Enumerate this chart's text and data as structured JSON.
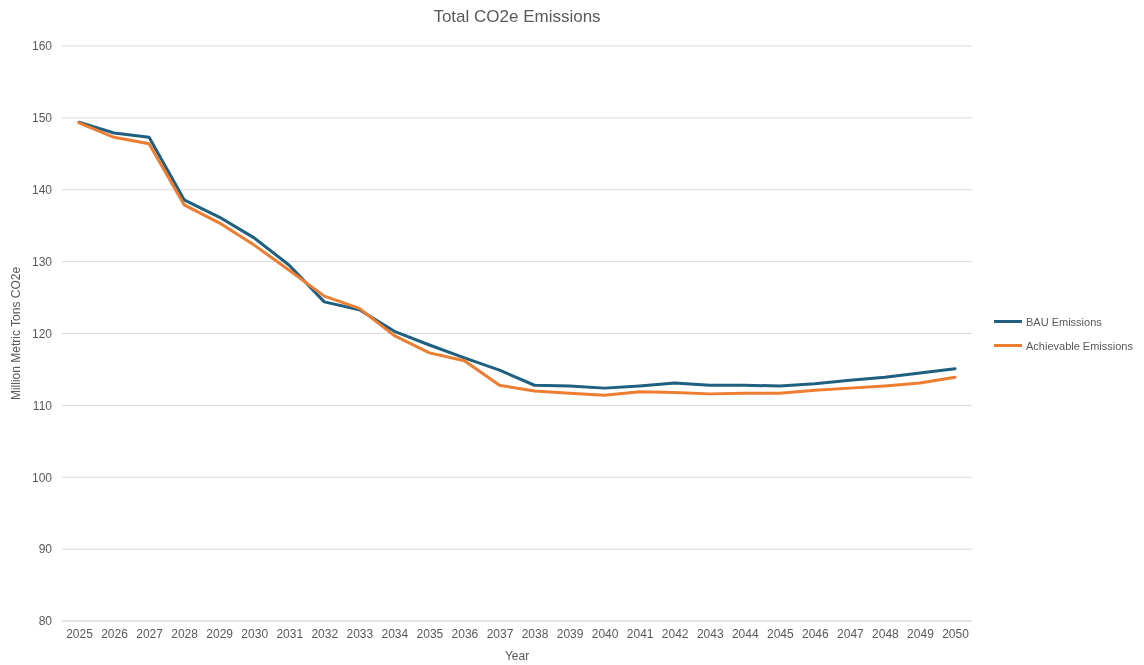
{
  "chart_data": {
    "type": "line",
    "title": "Total CO2e Emissions",
    "xlabel": "Year",
    "ylabel": "Million Metric Tons CO2e",
    "categories": [
      "2025",
      "2026",
      "2027",
      "2028",
      "2029",
      "2030",
      "2031",
      "2032",
      "2033",
      "2034",
      "2035",
      "2036",
      "2037",
      "2038",
      "2039",
      "2040",
      "2041",
      "2042",
      "2043",
      "2044",
      "2045",
      "2046",
      "2047",
      "2048",
      "2049",
      "2050"
    ],
    "series": [
      {
        "name": "BAU Emissions",
        "color": "#1f5f7f",
        "values": [
          149.4,
          147.9,
          147.3,
          138.6,
          136.2,
          133.3,
          129.5,
          124.4,
          123.3,
          120.3,
          118.4,
          116.6,
          114.9,
          112.8,
          112.7,
          112.4,
          112.7,
          113.1,
          112.8,
          112.8,
          112.7,
          113.0,
          113.5,
          113.9,
          114.5,
          115.1
        ]
      },
      {
        "name": "Achievable Emissions",
        "color": "#ed7d31",
        "values": [
          149.3,
          147.3,
          146.4,
          137.9,
          135.4,
          132.3,
          128.8,
          125.2,
          123.5,
          119.7,
          117.3,
          116.2,
          112.8,
          112.0,
          111.7,
          111.4,
          111.9,
          111.8,
          111.6,
          111.7,
          111.7,
          112.1,
          112.4,
          112.7,
          113.1,
          113.9
        ]
      }
    ],
    "ylim": [
      80,
      160
    ],
    "yticks": [
      80,
      90,
      100,
      110,
      120,
      130,
      140,
      150,
      160
    ],
    "grid": "y",
    "legend": "right",
    "marker": "none",
    "line_style": "solid"
  }
}
